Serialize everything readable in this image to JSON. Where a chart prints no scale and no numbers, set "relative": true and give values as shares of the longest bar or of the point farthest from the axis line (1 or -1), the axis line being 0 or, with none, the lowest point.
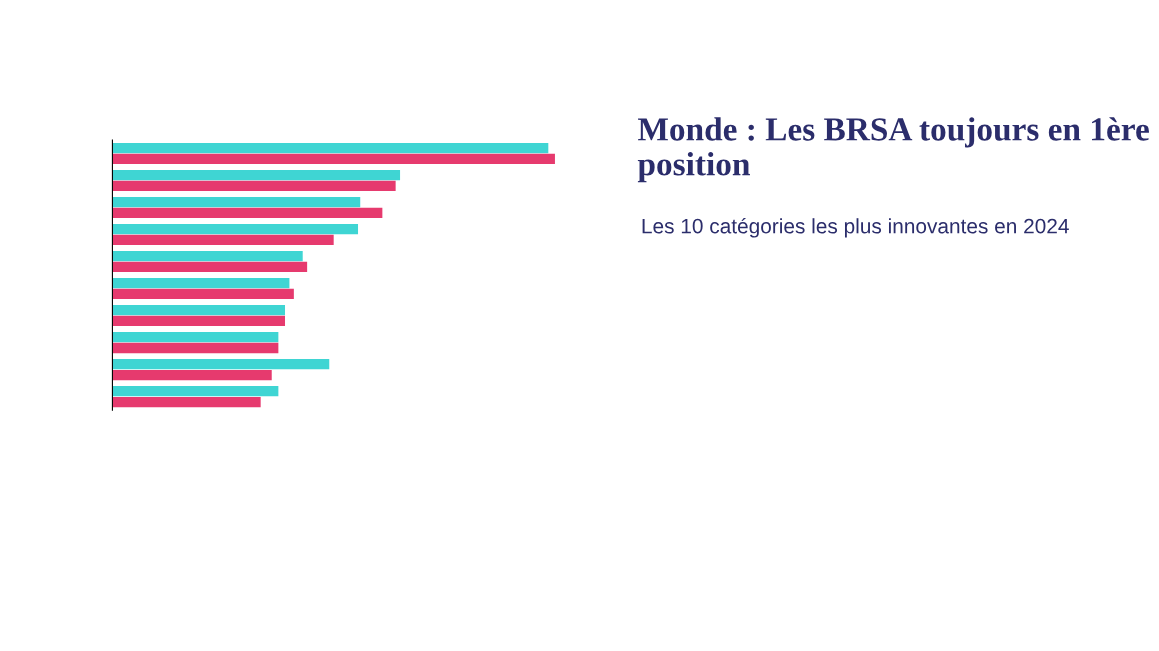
{
  "chart_data": {
    "type": "bar",
    "orientation": "horizontal",
    "relative": true,
    "title": "Monde : Les BRSA toujours en 1ère position",
    "subtitle": "Les 10 catégories les plus innovantes en 2024",
    "categories": [
      null,
      null,
      null,
      null,
      null,
      null,
      null,
      null,
      null,
      null
    ],
    "series": [
      {
        "color": "#3fd5d3",
        "values": [
          0.985,
          0.65,
          0.56,
          0.555,
          0.43,
          0.4,
          0.39,
          0.375,
          0.49,
          0.375
        ]
      },
      {
        "color": "#e63a6e",
        "values": [
          1.0,
          0.64,
          0.61,
          0.5,
          0.44,
          0.41,
          0.39,
          0.375,
          0.36,
          0.335
        ]
      }
    ],
    "grid": false
  }
}
